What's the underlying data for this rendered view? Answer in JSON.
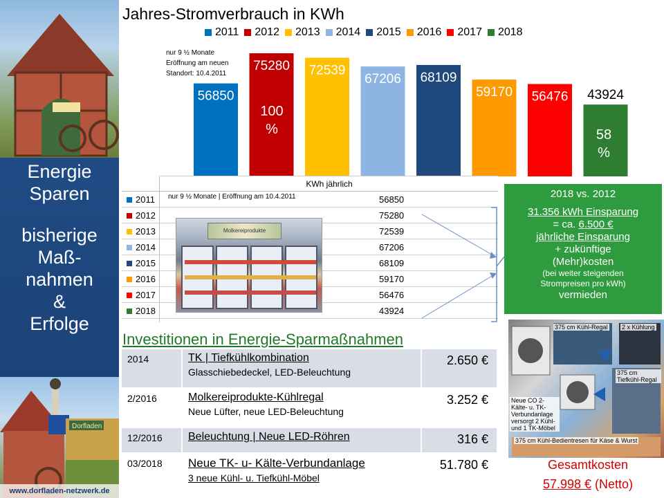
{
  "sidebar": {
    "title_lines": [
      "Energie",
      "Sparen"
    ],
    "subtitle_lines": [
      "bisherige",
      "Maß-",
      "nahmen",
      "&",
      "Erfolge"
    ],
    "url": "www.dorfladen-netzwerk.de",
    "logo_text": "Dorfladen"
  },
  "chart_data": {
    "type": "bar",
    "title": "Jahres-Stromverbrauch in KWh",
    "categories": [
      "2011",
      "2012",
      "2013",
      "2014",
      "2015",
      "2016",
      "2017",
      "2018"
    ],
    "values": [
      56850,
      75280,
      72539,
      67206,
      68109,
      59170,
      56476,
      43924
    ],
    "colors": [
      "#0070c0",
      "#c00000",
      "#ffc000",
      "#8eb4e3",
      "#1f497d",
      "#ff9900",
      "#ff0000",
      "#2e7d32"
    ],
    "annotations": {
      "note_2011": [
        "nur 9 ½ Monate",
        "Eröffnung am neuen",
        "Standort: 10.4.2011"
      ],
      "pct_2012": [
        "100",
        "%"
      ],
      "pct_2018": [
        "58",
        "%"
      ]
    },
    "legend": "top",
    "grid": false
  },
  "table": {
    "header": "KWh jährlich",
    "note": "nur 9 ½ Monate | Eröffnung am 10.4.2011",
    "rows": [
      {
        "year": "2011",
        "value": "56850"
      },
      {
        "year": "2012",
        "value": "75280"
      },
      {
        "year": "2013",
        "value": "72539"
      },
      {
        "year": "2014",
        "value": "67206"
      },
      {
        "year": "2015",
        "value": "68109"
      },
      {
        "year": "2016",
        "value": "59170"
      },
      {
        "year": "2017",
        "value": "56476"
      },
      {
        "year": "2018",
        "value": "43924"
      }
    ],
    "photo_sign": "Molkereiprodukte"
  },
  "comparison": {
    "title": "2018 vs. 2012",
    "line1": "31.356 kWh Einsparung",
    "line2_prefix": "= ca. ",
    "line2_value": "6.500 €",
    "line3": "jährliche Einsparung",
    "line4": "+ zukünftige",
    "line5": "(Mehr)kosten",
    "line6": "(bei weiter steigenden",
    "line7": "Strompreisen  pro kWh)",
    "line8": "vermieden"
  },
  "investments": {
    "title": "Investitionen in Energie-Sparmaßnahmen",
    "rows": [
      {
        "year": "2014",
        "main": "TK | Tiefkühlkombination",
        "sub": "Glasschiebedeckel, LED-Beleuchtung",
        "cost": "2.650 €"
      },
      {
        "year": "2/2016",
        "main": "Molkereiprodukte-Kühlregal",
        "sub": "Neue Lüfter, neue LED-Beleuchtung",
        "cost": "3.252 €"
      },
      {
        "year": "12/2016",
        "main": "Beleuchtung | Neue LED-Röhren",
        "sub": "",
        "cost": "316 €"
      },
      {
        "year": "03/2018",
        "main": "Neue TK- u- Kälte-Verbundanlage",
        "sub": "3 neue Kühl- u. Tiefkühl-Möbel",
        "cost": "51.780 €"
      }
    ]
  },
  "photos": {
    "label_regal": "375 cm Kühl-Regal",
    "label_regal2": "375 cm Tiefkühl-Regal",
    "label_anlage": "Neue CO 2-Kälte- u. TK-Verbundanlage versorgt 2 Kühl- und 1 TK-Möbel",
    "label_theke": "375 cm Kühl-Bedientresen für Käse & Wurst",
    "label_kuehlung": "2 x Kühlung"
  },
  "total": {
    "label": "Gesamtkosten",
    "value": "57.998 €",
    "suffix": " (Netto)"
  }
}
